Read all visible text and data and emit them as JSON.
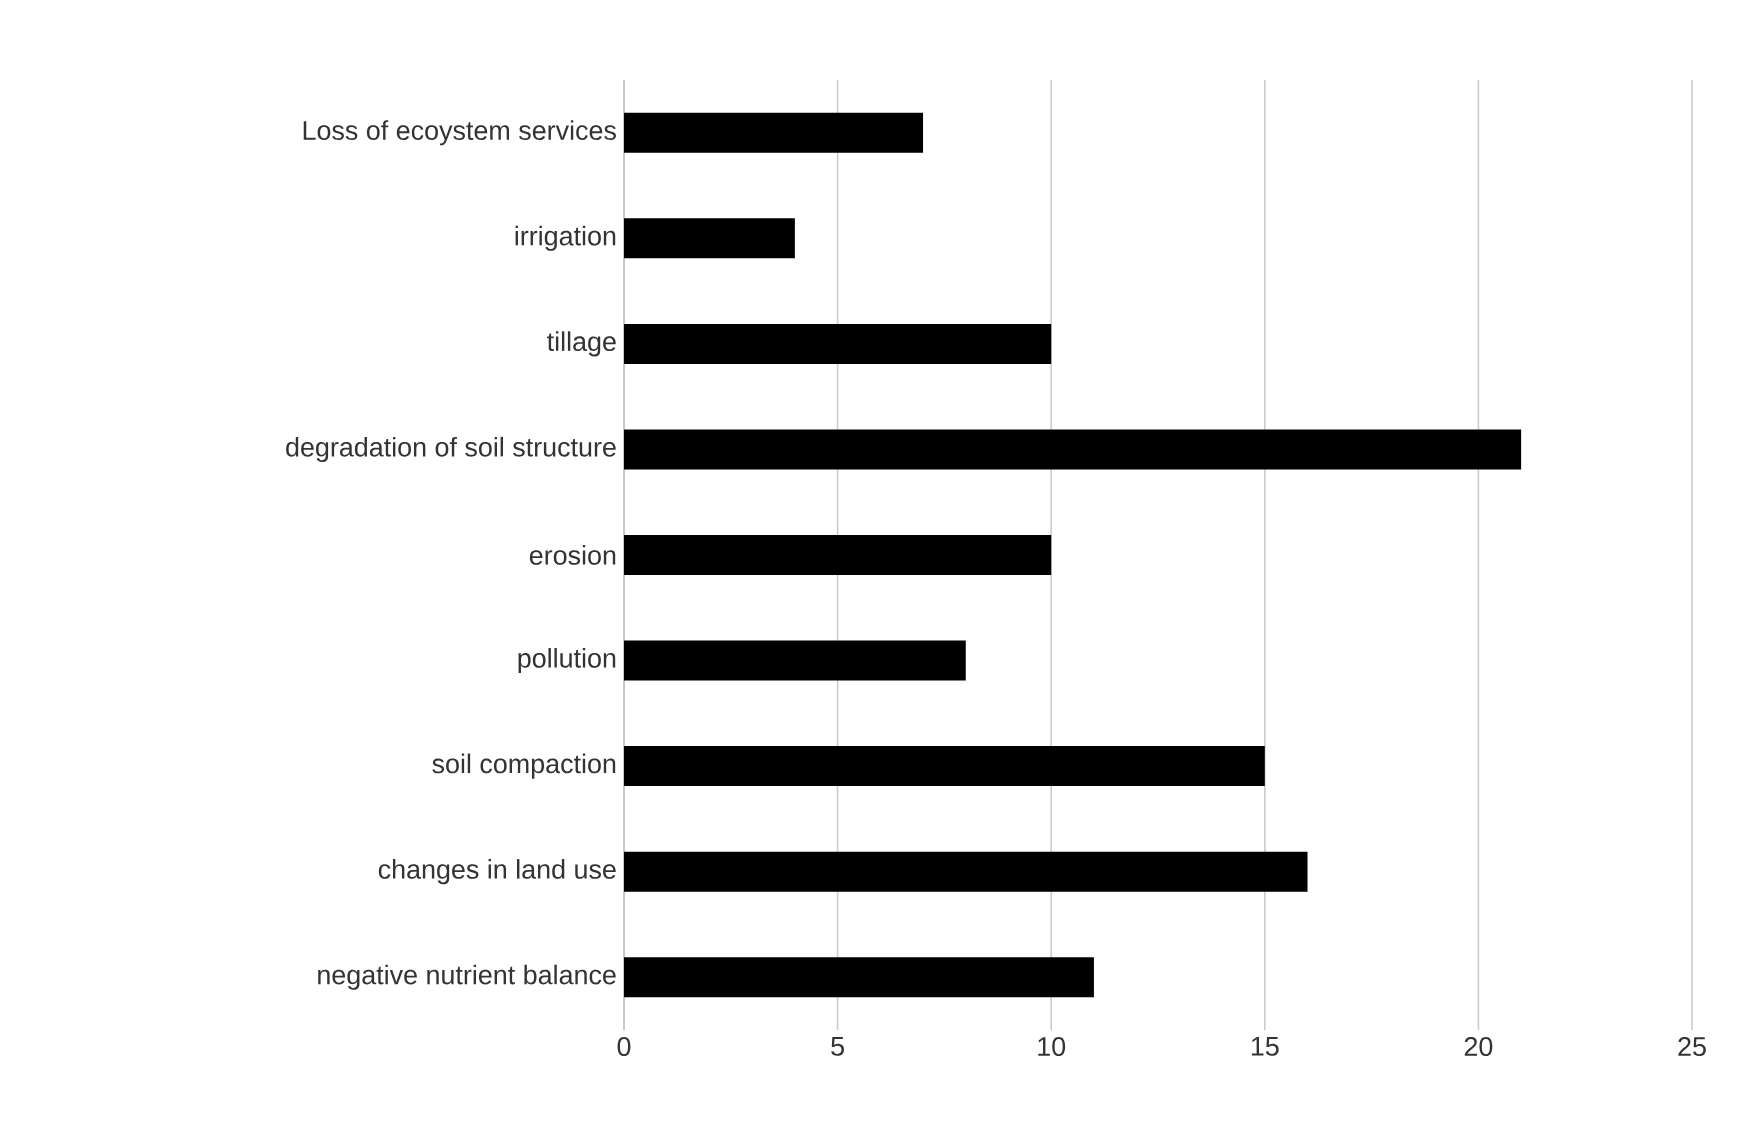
{
  "chart_data": {
    "type": "bar",
    "orientation": "horizontal",
    "categories": [
      "Loss of ecoystem services",
      "irrigation",
      "tillage",
      "degradation of soil structure",
      "erosion",
      "pollution",
      "soil compaction",
      "changes in land use",
      "negative nutrient balance"
    ],
    "values": [
      7,
      4,
      10,
      21,
      10,
      8,
      15,
      16,
      11
    ],
    "color": "#000000",
    "xlim": [
      0,
      25
    ],
    "xticks": [
      0,
      5,
      10,
      15,
      20,
      25
    ],
    "grid": "x"
  }
}
